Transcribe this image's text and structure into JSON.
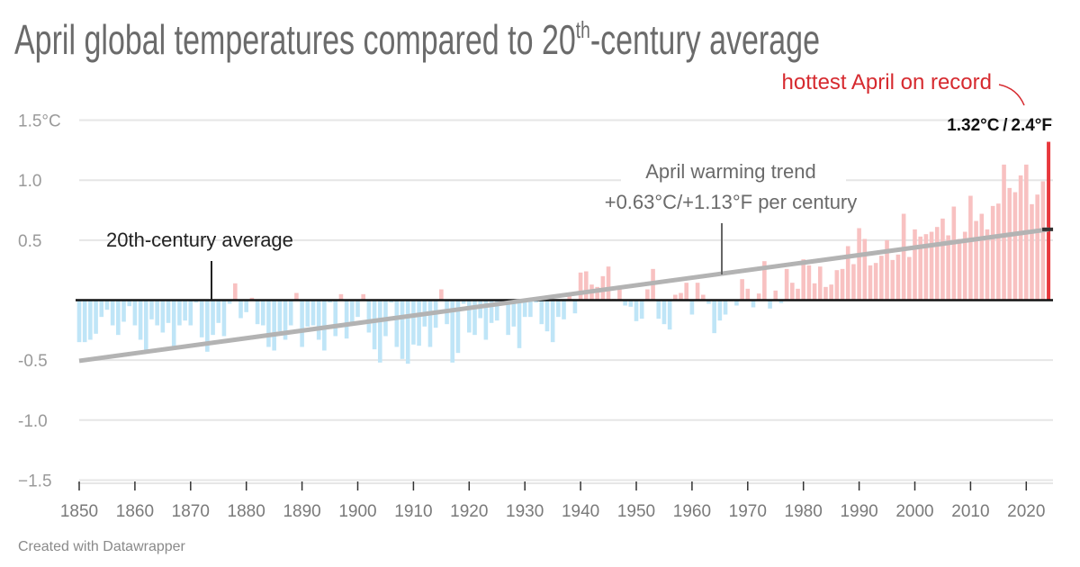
{
  "chart_data": {
    "type": "bar",
    "title": "April global temperatures compared to 20",
    "title_sup": "th",
    "title_rest": "-century average",
    "ylim": [
      -1.5,
      1.5
    ],
    "xlim": [
      1850,
      2024
    ],
    "y_ticks": [
      {
        "value": 1.5,
        "label": "1.5°C"
      },
      {
        "value": 1.0,
        "label": "1.0"
      },
      {
        "value": 0.5,
        "label": "0.5"
      },
      {
        "value": -0.5,
        "label": "-0.5"
      },
      {
        "value": -1.0,
        "label": "-1.0"
      },
      {
        "value": -1.5,
        "label": "−1.5"
      }
    ],
    "x_ticks": [
      "1850",
      "1860",
      "1870",
      "1880",
      "1890",
      "1900",
      "1910",
      "1920",
      "1930",
      "1940",
      "1950",
      "1960",
      "1970",
      "1980",
      "1990",
      "2000",
      "2010",
      "2020"
    ],
    "grid": true,
    "colors": {
      "positive": "#f8c1c1",
      "negative": "#bfe5f7",
      "record": "#e8383d",
      "trend": "#b3b3b3",
      "zero_line": "#111111"
    },
    "x_start": 1850,
    "values": [
      -0.35,
      -0.35,
      -0.33,
      -0.28,
      -0.14,
      -0.08,
      -0.21,
      -0.29,
      -0.18,
      -0.05,
      -0.21,
      -0.33,
      -0.42,
      -0.16,
      -0.21,
      -0.27,
      -0.19,
      -0.39,
      -0.21,
      -0.17,
      -0.21,
      -0.02,
      -0.31,
      -0.43,
      -0.29,
      -0.19,
      -0.3,
      -0.03,
      0.14,
      -0.15,
      -0.1,
      0.02,
      -0.2,
      -0.21,
      -0.39,
      -0.42,
      -0.26,
      -0.33,
      -0.21,
      0.06,
      -0.39,
      -0.22,
      -0.21,
      -0.33,
      -0.42,
      -0.02,
      -0.3,
      0.05,
      -0.32,
      -0.21,
      -0.14,
      0.05,
      -0.27,
      -0.41,
      -0.52,
      -0.3,
      -0.02,
      -0.39,
      -0.49,
      -0.53,
      -0.37,
      -0.38,
      -0.22,
      -0.39,
      -0.23,
      0.09,
      -0.2,
      -0.52,
      -0.44,
      -0.03,
      -0.27,
      -0.29,
      -0.15,
      -0.33,
      -0.19,
      -0.17,
      -0.02,
      -0.29,
      -0.22,
      -0.4,
      -0.14,
      -0.14,
      -0.02,
      -0.2,
      -0.26,
      -0.35,
      -0.14,
      -0.16,
      0.06,
      -0.11,
      0.23,
      0.24,
      0.13,
      0.11,
      0.2,
      0.28,
      0.01,
      0.09,
      -0.045,
      -0.055,
      -0.175,
      -0.155,
      0.09,
      0.26,
      -0.155,
      -0.2,
      -0.245,
      0.045,
      0.06,
      0.145,
      -0.12,
      0.145,
      0.045,
      -0.03,
      -0.275,
      -0.17,
      -0.12,
      -0.01,
      -0.045,
      0.175,
      0.095,
      -0.06,
      0.055,
      0.325,
      -0.07,
      0.08,
      -0.025,
      0.26,
      0.145,
      0.095,
      0.34,
      0.29,
      0.14,
      0.28,
      0.11,
      0.13,
      0.25,
      0.26,
      0.45,
      0.3,
      0.6,
      0.51,
      0.29,
      0.31,
      0.37,
      0.5,
      0.335,
      0.38,
      0.72,
      0.36,
      0.59,
      0.53,
      0.55,
      0.57,
      0.61,
      0.68,
      0.54,
      0.78,
      0.51,
      0.57,
      0.87,
      0.66,
      0.72,
      0.59,
      0.785,
      0.805,
      1.13,
      0.935,
      0.9,
      1.04,
      1.13,
      0.8,
      0.88,
      0.99,
      1.32
    ],
    "trend": {
      "start": [
        1850,
        -0.506
      ],
      "end": [
        2024,
        0.59
      ],
      "label_line1": "April warming trend",
      "label_line2": "+0.63°C/+1.13°F per century"
    },
    "annotations": {
      "baseline_label": "20th-century average",
      "record_label": "hottest April on record",
      "record_value": "1.32°C / 2.4°F"
    }
  },
  "footer": {
    "credit": "Created with Datawrapper"
  }
}
